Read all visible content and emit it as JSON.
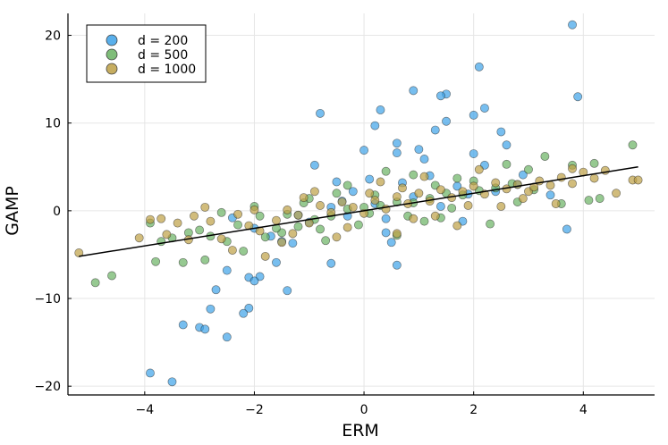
{
  "chart_data": {
    "type": "scatter",
    "title": "",
    "xlabel": "ERM",
    "ylabel": "GAMP",
    "xlim": [
      -5.4,
      5.3
    ],
    "ylim": [
      -21,
      22.5
    ],
    "xticks": [
      -4,
      -2,
      0,
      2,
      4
    ],
    "yticks": [
      -20,
      -10,
      0,
      10,
      20
    ],
    "xtick_labels": [
      "−4",
      "−2",
      "0",
      "2",
      "4"
    ],
    "ytick_labels": [
      "−20",
      "−10",
      "0",
      "10",
      "20"
    ],
    "grid": true,
    "legend_position": "top-left",
    "fit_line": {
      "x": [
        -5.2,
        5.0
      ],
      "y": [
        -5.2,
        5.0
      ],
      "color": "#000000"
    },
    "series": [
      {
        "name": "d = 200",
        "color": "#3da2e8",
        "points": [
          [
            3.8,
            21.2
          ],
          [
            2.1,
            16.4
          ],
          [
            0.9,
            13.7
          ],
          [
            1.5,
            13.3
          ],
          [
            1.4,
            13.1
          ],
          [
            3.9,
            13.0
          ],
          [
            0.3,
            11.5
          ],
          [
            -0.8,
            11.1
          ],
          [
            2.2,
            11.7
          ],
          [
            2.0,
            10.9
          ],
          [
            1.5,
            10.2
          ],
          [
            0.2,
            9.7
          ],
          [
            1.3,
            9.2
          ],
          [
            2.5,
            9.0
          ],
          [
            0.6,
            7.7
          ],
          [
            2.6,
            7.5
          ],
          [
            1.0,
            7.0
          ],
          [
            0.0,
            6.9
          ],
          [
            0.6,
            6.6
          ],
          [
            2.0,
            6.5
          ],
          [
            1.1,
            5.9
          ],
          [
            -0.9,
            5.2
          ],
          [
            2.2,
            5.2
          ],
          [
            -0.5,
            3.3
          ],
          [
            3.7,
            -2.1
          ],
          [
            0.5,
            -3.6
          ],
          [
            -0.6,
            -6.0
          ],
          [
            0.6,
            -6.2
          ],
          [
            -2.5,
            -6.8
          ],
          [
            -2.7,
            -9.0
          ],
          [
            -1.4,
            -9.1
          ],
          [
            -2.1,
            -7.6
          ],
          [
            -1.9,
            -7.5
          ],
          [
            -2.0,
            -8.0
          ],
          [
            -2.8,
            -11.2
          ],
          [
            -2.1,
            -11.1
          ],
          [
            -2.2,
            -11.7
          ],
          [
            -3.3,
            -13.0
          ],
          [
            -3.0,
            -13.3
          ],
          [
            -2.9,
            -13.5
          ],
          [
            -2.5,
            -14.4
          ],
          [
            -3.9,
            -18.5
          ],
          [
            -3.5,
            -19.5
          ],
          [
            -1.6,
            -5.9
          ],
          [
            -1.5,
            -3.5
          ],
          [
            0.4,
            -2.5
          ],
          [
            1.8,
            -1.2
          ],
          [
            -1.0,
            -1.3
          ],
          [
            -0.3,
            -0.6
          ],
          [
            0.2,
            0.8
          ],
          [
            0.9,
            1.6
          ],
          [
            1.7,
            2.8
          ],
          [
            2.8,
            3.0
          ],
          [
            3.4,
            1.8
          ],
          [
            -0.4,
            1.1
          ],
          [
            -1.2,
            -0.5
          ],
          [
            -2.0,
            -2.0
          ],
          [
            0.7,
            3.2
          ],
          [
            1.2,
            4.0
          ],
          [
            -0.2,
            2.2
          ],
          [
            0.4,
            -0.9
          ],
          [
            1.4,
            0.5
          ],
          [
            2.4,
            2.2
          ],
          [
            -1.7,
            -2.9
          ],
          [
            -0.6,
            0.4
          ],
          [
            -2.4,
            -0.8
          ],
          [
            0.1,
            3.6
          ],
          [
            1.9,
            1.9
          ],
          [
            -1.3,
            -3.7
          ],
          [
            2.9,
            4.1
          ]
        ]
      },
      {
        "name": "d = 500",
        "color": "#69b262",
        "points": [
          [
            -4.9,
            -8.2
          ],
          [
            -4.6,
            -7.4
          ],
          [
            -3.8,
            -5.8
          ],
          [
            -3.3,
            -5.9
          ],
          [
            -2.9,
            -5.6
          ],
          [
            -3.9,
            -1.4
          ],
          [
            -3.5,
            -3.1
          ],
          [
            -2.8,
            -2.9
          ],
          [
            -2.2,
            -4.6
          ],
          [
            -1.8,
            -3.0
          ],
          [
            -1.5,
            -2.5
          ],
          [
            -1.2,
            -1.8
          ],
          [
            -0.9,
            -1.0
          ],
          [
            -0.6,
            -0.6
          ],
          [
            -0.3,
            0.2
          ],
          [
            0.0,
            0.4
          ],
          [
            0.3,
            0.6
          ],
          [
            0.6,
            1.0
          ],
          [
            0.9,
            0.9
          ],
          [
            1.2,
            1.4
          ],
          [
            1.5,
            2.0
          ],
          [
            1.8,
            1.8
          ],
          [
            2.1,
            2.3
          ],
          [
            2.4,
            2.6
          ],
          [
            2.7,
            3.1
          ],
          [
            3.0,
            4.7
          ],
          [
            3.3,
            6.2
          ],
          [
            3.8,
            5.2
          ],
          [
            4.2,
            5.4
          ],
          [
            4.1,
            1.2
          ],
          [
            4.9,
            7.5
          ],
          [
            3.6,
            0.8
          ],
          [
            2.3,
            -1.5
          ],
          [
            1.1,
            -1.2
          ],
          [
            0.4,
            4.5
          ],
          [
            0.8,
            -0.6
          ],
          [
            -0.1,
            -1.6
          ],
          [
            -0.5,
            2.0
          ],
          [
            -1.0,
            1.4
          ],
          [
            -1.4,
            -0.4
          ],
          [
            -2.0,
            0.5
          ],
          [
            -2.5,
            -3.5
          ],
          [
            -3.0,
            -2.2
          ],
          [
            -3.7,
            -3.5
          ],
          [
            -0.7,
            -3.4
          ],
          [
            0.6,
            -2.8
          ],
          [
            1.7,
            3.7
          ],
          [
            2.6,
            5.3
          ],
          [
            -1.6,
            -2.0
          ],
          [
            0.2,
            1.8
          ],
          [
            1.4,
            -0.8
          ],
          [
            2.0,
            3.4
          ],
          [
            -0.3,
            2.9
          ],
          [
            -2.3,
            -1.6
          ],
          [
            3.1,
            2.4
          ],
          [
            4.3,
            1.4
          ],
          [
            -3.2,
            -2.5
          ],
          [
            0.9,
            4.1
          ],
          [
            1.6,
            0.3
          ],
          [
            -0.8,
            -2.1
          ],
          [
            -1.9,
            -0.6
          ],
          [
            2.8,
            1.0
          ],
          [
            0.1,
            -0.3
          ],
          [
            1.3,
            2.9
          ],
          [
            -1.1,
            0.9
          ],
          [
            -2.6,
            -0.2
          ]
        ]
      },
      {
        "name": "d = 1000",
        "color": "#bd9f45",
        "points": [
          [
            -5.2,
            -4.8
          ],
          [
            -4.1,
            -3.1
          ],
          [
            -3.9,
            -1.0
          ],
          [
            -3.6,
            -2.7
          ],
          [
            -3.4,
            -1.4
          ],
          [
            -3.1,
            -0.6
          ],
          [
            -2.8,
            -1.2
          ],
          [
            -2.6,
            -3.2
          ],
          [
            -2.3,
            -0.4
          ],
          [
            -2.1,
            -1.7
          ],
          [
            -1.9,
            -2.3
          ],
          [
            -1.6,
            -1.1
          ],
          [
            -1.4,
            0.1
          ],
          [
            -1.2,
            -0.5
          ],
          [
            -1.0,
            -1.4
          ],
          [
            -0.8,
            0.6
          ],
          [
            -0.6,
            -0.2
          ],
          [
            -0.4,
            1.0
          ],
          [
            -0.2,
            0.4
          ],
          [
            0.0,
            -0.3
          ],
          [
            0.2,
            1.2
          ],
          [
            0.4,
            0.2
          ],
          [
            0.6,
            1.6
          ],
          [
            0.8,
            0.8
          ],
          [
            1.0,
            2.0
          ],
          [
            1.2,
            1.1
          ],
          [
            1.4,
            2.4
          ],
          [
            1.6,
            1.5
          ],
          [
            1.8,
            2.2
          ],
          [
            2.0,
            2.8
          ],
          [
            2.2,
            1.9
          ],
          [
            2.4,
            3.2
          ],
          [
            2.6,
            2.5
          ],
          [
            2.8,
            3.0
          ],
          [
            3.0,
            2.2
          ],
          [
            3.2,
            3.4
          ],
          [
            3.4,
            2.9
          ],
          [
            3.6,
            3.8
          ],
          [
            3.8,
            3.1
          ],
          [
            4.0,
            4.4
          ],
          [
            4.2,
            3.7
          ],
          [
            4.4,
            4.6
          ],
          [
            4.6,
            2.0
          ],
          [
            4.9,
            3.5
          ],
          [
            5.0,
            3.5
          ],
          [
            3.8,
            4.8
          ],
          [
            3.5,
            0.8
          ],
          [
            2.9,
            1.4
          ],
          [
            1.7,
            -1.7
          ],
          [
            0.6,
            -2.6
          ],
          [
            -0.5,
            -3.0
          ],
          [
            -1.5,
            -3.6
          ],
          [
            -2.4,
            -4.5
          ],
          [
            -3.2,
            -3.3
          ],
          [
            -1.8,
            -5.2
          ],
          [
            -0.9,
            2.2
          ],
          [
            0.3,
            3.3
          ],
          [
            1.1,
            3.9
          ],
          [
            2.1,
            4.7
          ],
          [
            -2.9,
            0.4
          ],
          [
            -3.7,
            -0.9
          ],
          [
            -1.1,
            1.5
          ],
          [
            0.1,
            2.0
          ],
          [
            1.3,
            -0.6
          ],
          [
            2.5,
            0.5
          ],
          [
            -0.3,
            -1.9
          ],
          [
            0.9,
            -0.9
          ],
          [
            -2.0,
            0.1
          ],
          [
            -1.3,
            -2.6
          ],
          [
            0.7,
            2.6
          ],
          [
            1.9,
            0.6
          ],
          [
            3.1,
            2.7
          ]
        ]
      }
    ]
  }
}
